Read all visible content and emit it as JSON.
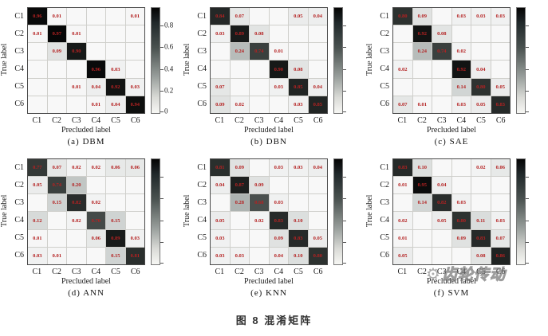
{
  "figure_caption": "图 8  混淆矩阵",
  "watermark": {
    "icon": "gear-icon",
    "text": "齿轮传动"
  },
  "colors": {
    "value_text": "#b42222",
    "cell_low": "#f7f7f4",
    "cell_high": "#000000",
    "grid_line": "#cfcfcb"
  },
  "axes": {
    "xlabel": "Precluded label",
    "ylabel": "True label",
    "classes": [
      "C1",
      "C2",
      "C3",
      "C4",
      "C5",
      "C6"
    ]
  },
  "colorbar": {
    "tick_values": [
      0.8,
      0.6,
      0.4,
      0.2,
      0
    ],
    "tick_labels": [
      "0.8",
      "0.6",
      "0.4",
      "0.2",
      "0"
    ],
    "vmax": 0.97,
    "labels_shown_on_panels": [
      "(a)"
    ]
  },
  "chart_data": [
    {
      "type": "heatmap",
      "title": "(a)  DBM",
      "panel": "(a)",
      "model": "DBM",
      "xlabel": "Precluded label",
      "ylabel": "True label",
      "x": [
        "C1",
        "C2",
        "C3",
        "C4",
        "C5",
        "C6"
      ],
      "y": [
        "C1",
        "C2",
        "C3",
        "C4",
        "C5",
        "C6"
      ],
      "matrix": [
        [
          0.96,
          0.01,
          null,
          null,
          null,
          0.01
        ],
        [
          0.01,
          0.97,
          0.01,
          null,
          null,
          null
        ],
        [
          null,
          0.09,
          0.9,
          null,
          null,
          null
        ],
        [
          null,
          null,
          null,
          0.96,
          0.03,
          null
        ],
        [
          null,
          null,
          0.01,
          0.04,
          0.92,
          0.03
        ],
        [
          null,
          null,
          null,
          0.01,
          0.04,
          0.94
        ]
      ],
      "colorbar_labeled": true
    },
    {
      "type": "heatmap",
      "title": "(b)  DBN",
      "panel": "(b)",
      "model": "DBN",
      "xlabel": "Precluded label",
      "ylabel": "True label",
      "x": [
        "C1",
        "C2",
        "C3",
        "C4",
        "C5",
        "C6"
      ],
      "y": [
        "C1",
        "C2",
        "C3",
        "C4",
        "C5",
        "C6"
      ],
      "matrix": [
        [
          0.84,
          0.07,
          null,
          null,
          0.05,
          0.04
        ],
        [
          0.03,
          0.89,
          0.08,
          null,
          null,
          null
        ],
        [
          null,
          0.24,
          0.74,
          0.01,
          null,
          null
        ],
        [
          null,
          null,
          null,
          0.9,
          0.08,
          null
        ],
        [
          0.07,
          null,
          null,
          0.03,
          0.85,
          0.04
        ],
        [
          0.09,
          0.02,
          null,
          null,
          0.03,
          0.85
        ]
      ],
      "colorbar_labeled": false
    },
    {
      "type": "heatmap",
      "title": "(c)  SAE",
      "panel": "(c)",
      "model": "SAE",
      "xlabel": "Precluded label",
      "ylabel": "True label",
      "x": [
        "C1",
        "C2",
        "C3",
        "C4",
        "C5",
        "C6"
      ],
      "y": [
        "C1",
        "C2",
        "C3",
        "C4",
        "C5",
        "C6"
      ],
      "matrix": [
        [
          0.8,
          0.09,
          null,
          0.03,
          0.03,
          0.03
        ],
        [
          null,
          0.92,
          0.08,
          null,
          null,
          null
        ],
        [
          null,
          0.24,
          0.74,
          0.02,
          null,
          null
        ],
        [
          0.02,
          null,
          null,
          0.92,
          0.04,
          null
        ],
        [
          null,
          null,
          null,
          0.14,
          0.8,
          0.05
        ],
        [
          0.07,
          0.01,
          null,
          0.03,
          0.05,
          0.83
        ]
      ],
      "colorbar_labeled": false
    },
    {
      "type": "heatmap",
      "title": "(d)  ANN",
      "panel": "(d)",
      "model": "ANN",
      "xlabel": "Precluded label",
      "ylabel": "True label",
      "x": [
        "C1",
        "C2",
        "C3",
        "C4",
        "C5",
        "C6"
      ],
      "y": [
        "C1",
        "C2",
        "C3",
        "C4",
        "C5",
        "C6"
      ],
      "matrix": [
        [
          0.77,
          0.07,
          0.02,
          0.02,
          0.06,
          0.06
        ],
        [
          0.05,
          0.74,
          0.2,
          null,
          null,
          null
        ],
        [
          null,
          0.15,
          0.82,
          0.02,
          null,
          null
        ],
        [
          0.12,
          null,
          0.02,
          0.7,
          0.15,
          null
        ],
        [
          0.01,
          null,
          null,
          0.06,
          0.89,
          0.03
        ],
        [
          0.03,
          0.01,
          null,
          null,
          0.15,
          0.81
        ]
      ],
      "colorbar_labeled": false
    },
    {
      "type": "heatmap",
      "title": "(e)  KNN",
      "panel": "(e)",
      "model": "KNN",
      "xlabel": "Precluded label",
      "ylabel": "True label",
      "x": [
        "C1",
        "C2",
        "C3",
        "C4",
        "C5",
        "C6"
      ],
      "y": [
        "C1",
        "C2",
        "C3",
        "C4",
        "C5",
        "C6"
      ],
      "matrix": [
        [
          0.81,
          0.09,
          null,
          0.03,
          0.03,
          0.04
        ],
        [
          0.04,
          0.87,
          0.09,
          null,
          null,
          null
        ],
        [
          null,
          0.28,
          0.68,
          0.03,
          null,
          null
        ],
        [
          0.05,
          null,
          0.02,
          0.83,
          0.1,
          null
        ],
        [
          0.03,
          null,
          null,
          0.09,
          0.83,
          0.05
        ],
        [
          0.03,
          0.03,
          null,
          0.04,
          0.1,
          0.8
        ]
      ],
      "colorbar_labeled": false
    },
    {
      "type": "heatmap",
      "title": "(f)  SVM",
      "panel": "(f)",
      "model": "SVM",
      "xlabel": "Precluded label",
      "ylabel": "True label",
      "x": [
        "C1",
        "C2",
        "C3",
        "C4",
        "C5",
        "C6"
      ],
      "y": [
        "C1",
        "C2",
        "C3",
        "C4",
        "C5",
        "C6"
      ],
      "matrix": [
        [
          0.83,
          0.1,
          null,
          null,
          0.02,
          0.06
        ],
        [
          0.01,
          0.95,
          0.04,
          null,
          null,
          null
        ],
        [
          null,
          0.14,
          0.82,
          0.03,
          null,
          null
        ],
        [
          0.02,
          null,
          0.05,
          0.8,
          0.11,
          0.03
        ],
        [
          0.01,
          null,
          null,
          0.09,
          0.83,
          0.07
        ],
        [
          0.05,
          null,
          null,
          null,
          0.08,
          0.86
        ]
      ],
      "colorbar_labeled": false
    }
  ]
}
